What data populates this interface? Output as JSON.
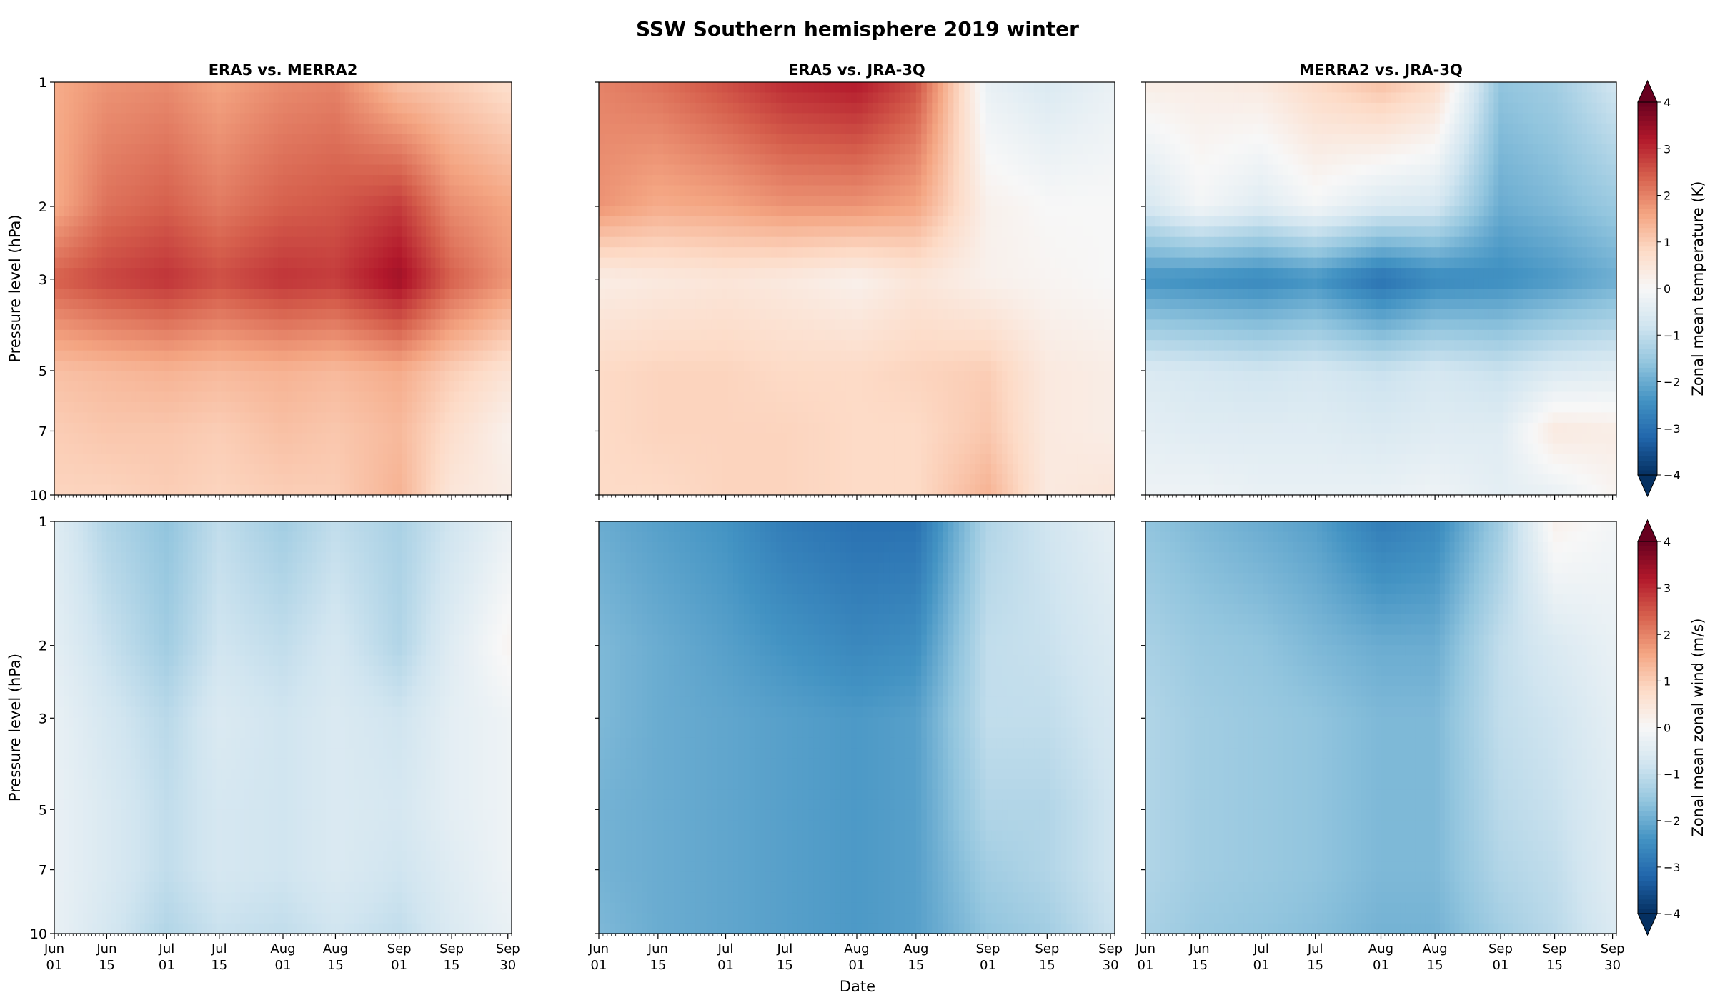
{
  "title": "SSW Southern hemisphere 2019 winter",
  "xlabel": "Date",
  "ylabel": "Pressure level (hPa)",
  "colors": {
    "cmap": "RdBu_r",
    "neg": "#053061",
    "pos": "#67001f"
  },
  "chart_data": [
    {
      "type": "heatmap",
      "title": "ERA5 vs. MERRA2",
      "variable": "temperature",
      "colorbar_label": "Zonal mean temperature (K)",
      "clim": [
        -4,
        4
      ],
      "colorbar_extend": "both",
      "x_ticks": [
        "Jun 01",
        "Jun 15",
        "Jul 01",
        "Jul 15",
        "Aug 01",
        "Aug 15",
        "Sep 01",
        "Sep 15",
        "Sep 30"
      ],
      "y_levels": [
        1,
        2,
        3,
        5,
        7,
        10
      ],
      "y_inverted": true,
      "dates": [
        "2019-06-01",
        "2019-06-15",
        "2019-07-01",
        "2019-07-15",
        "2019-08-01",
        "2019-08-15",
        "2019-09-01",
        "2019-09-15",
        "2019-09-30"
      ],
      "values_by_level": {
        "1": [
          1.5,
          1.8,
          1.9,
          1.6,
          1.9,
          2.0,
          1.2,
          1.0,
          0.7
        ],
        "2": [
          1.5,
          2.2,
          2.4,
          2.1,
          2.4,
          2.5,
          2.8,
          1.9,
          1.6
        ],
        "3": [
          2.4,
          2.7,
          2.9,
          2.6,
          2.9,
          2.8,
          3.4,
          2.4,
          1.8
        ],
        "5": [
          1.2,
          1.3,
          1.4,
          1.3,
          1.4,
          1.3,
          1.5,
          1.0,
          0.6
        ],
        "7": [
          1.0,
          1.1,
          1.1,
          1.0,
          1.2,
          1.1,
          1.3,
          0.7,
          0.2
        ],
        "10": [
          0.9,
          0.9,
          1.0,
          0.9,
          1.0,
          1.0,
          1.4,
          0.5,
          0.3
        ]
      }
    },
    {
      "type": "heatmap",
      "title": "ERA5 vs. JRA-3Q",
      "variable": "temperature",
      "colorbar_label": "Zonal mean temperature (K)",
      "clim": [
        -4,
        4
      ],
      "colorbar_extend": "both",
      "x_ticks": [
        "Jun 01",
        "Jun 15",
        "Jul 01",
        "Jul 15",
        "Aug 01",
        "Aug 15",
        "Sep 01",
        "Sep 15",
        "Sep 30"
      ],
      "y_levels": [
        1,
        2,
        3,
        5,
        7,
        10
      ],
      "y_inverted": true,
      "dates": [
        "2019-06-01",
        "2019-06-15",
        "2019-07-01",
        "2019-07-15",
        "2019-08-01",
        "2019-08-15",
        "2019-09-01",
        "2019-09-15",
        "2019-09-30"
      ],
      "values_by_level": {
        "1": [
          2.0,
          2.2,
          2.6,
          3.0,
          3.2,
          2.6,
          -0.3,
          -0.6,
          -0.3
        ],
        "2": [
          1.8,
          1.5,
          1.6,
          1.8,
          1.8,
          1.6,
          0.2,
          0.0,
          0.0
        ],
        "3": [
          0.3,
          0.4,
          0.5,
          0.4,
          0.2,
          0.5,
          0.2,
          0.1,
          0.0
        ],
        "5": [
          0.8,
          0.9,
          0.9,
          0.8,
          0.8,
          0.9,
          1.0,
          0.4,
          0.3
        ],
        "7": [
          0.8,
          0.9,
          0.9,
          0.9,
          0.8,
          0.8,
          1.1,
          0.4,
          0.3
        ],
        "10": [
          0.8,
          0.8,
          0.9,
          0.9,
          0.8,
          0.8,
          1.4,
          0.4,
          0.5
        ]
      }
    },
    {
      "type": "heatmap",
      "title": "MERRA2 vs. JRA-3Q",
      "variable": "temperature",
      "colorbar_label": "Zonal mean temperature (K)",
      "clim": [
        -4,
        4
      ],
      "colorbar_extend": "both",
      "x_ticks": [
        "Jun 01",
        "Jun 15",
        "Jul 01",
        "Jul 15",
        "Aug 01",
        "Aug 15",
        "Sep 01",
        "Sep 15",
        "Sep 30"
      ],
      "y_levels": [
        1,
        2,
        3,
        5,
        7,
        10
      ],
      "y_inverted": true,
      "dates": [
        "2019-06-01",
        "2019-06-15",
        "2019-07-01",
        "2019-07-15",
        "2019-08-01",
        "2019-08-15",
        "2019-09-01",
        "2019-09-15",
        "2019-09-30"
      ],
      "values_by_level": {
        "1": [
          0.3,
          0.3,
          0.4,
          0.8,
          1.2,
          0.8,
          -1.6,
          -1.4,
          -0.8
        ],
        "2": [
          -0.7,
          -0.1,
          -0.5,
          -0.1,
          -0.6,
          -0.7,
          -2.0,
          -1.8,
          -1.5
        ],
        "3": [
          -2.4,
          -2.5,
          -2.6,
          -2.4,
          -3.0,
          -2.6,
          -2.5,
          -2.3,
          -2.0
        ],
        "5": [
          -0.6,
          -0.7,
          -0.8,
          -0.7,
          -0.9,
          -0.7,
          -0.9,
          -0.6,
          -0.5
        ],
        "7": [
          -0.4,
          -0.5,
          -0.5,
          -0.5,
          -0.6,
          -0.5,
          -0.5,
          0.4,
          0.3
        ],
        "10": [
          -0.2,
          -0.2,
          -0.3,
          -0.3,
          -0.3,
          -0.2,
          -0.4,
          -0.3,
          0.1
        ]
      }
    },
    {
      "type": "heatmap",
      "title": "",
      "variable": "wind",
      "colorbar_label": "Zonal mean zonal wind (m/s)",
      "clim": [
        -4,
        4
      ],
      "colorbar_extend": "both",
      "x_ticks": [
        "Jun 01",
        "Jun 15",
        "Jul 01",
        "Jul 15",
        "Aug 01",
        "Aug 15",
        "Sep 01",
        "Sep 15",
        "Sep 30"
      ],
      "y_levels": [
        1,
        2,
        3,
        5,
        7,
        10
      ],
      "y_inverted": true,
      "dates": [
        "2019-06-01",
        "2019-06-15",
        "2019-07-01",
        "2019-07-15",
        "2019-08-01",
        "2019-08-15",
        "2019-09-01",
        "2019-09-15",
        "2019-09-30"
      ],
      "values_by_level": {
        "1": [
          -0.5,
          -1.2,
          -1.6,
          -1.0,
          -1.4,
          -1.0,
          -1.3,
          -0.8,
          -0.3
        ],
        "2": [
          -0.4,
          -0.9,
          -1.4,
          -0.8,
          -1.0,
          -0.7,
          -1.2,
          -0.5,
          0.1
        ],
        "3": [
          -0.3,
          -0.7,
          -1.1,
          -0.6,
          -0.8,
          -0.6,
          -0.8,
          -0.4,
          -0.2
        ],
        "5": [
          -0.3,
          -0.6,
          -1.0,
          -0.7,
          -0.8,
          -0.6,
          -0.7,
          -0.4,
          -0.2
        ],
        "7": [
          -0.3,
          -0.6,
          -1.0,
          -0.7,
          -0.8,
          -0.6,
          -0.8,
          -0.5,
          -0.2
        ],
        "10": [
          -0.3,
          -0.7,
          -1.2,
          -0.9,
          -1.0,
          -0.8,
          -1.0,
          -0.6,
          -0.3
        ]
      }
    },
    {
      "type": "heatmap",
      "title": "",
      "variable": "wind",
      "colorbar_label": "Zonal mean zonal wind (m/s)",
      "clim": [
        -4,
        4
      ],
      "colorbar_extend": "both",
      "x_ticks": [
        "Jun 01",
        "Jun 15",
        "Jul 01",
        "Jul 15",
        "Aug 01",
        "Aug 15",
        "Sep 01",
        "Sep 15",
        "Sep 30"
      ],
      "y_levels": [
        1,
        2,
        3,
        5,
        7,
        10
      ],
      "y_inverted": true,
      "dates": [
        "2019-06-01",
        "2019-06-15",
        "2019-07-01",
        "2019-07-15",
        "2019-08-01",
        "2019-08-15",
        "2019-09-01",
        "2019-09-15",
        "2019-09-30"
      ],
      "values_by_level": {
        "1": [
          -2.0,
          -2.2,
          -2.4,
          -2.8,
          -3.0,
          -3.0,
          -1.2,
          -0.8,
          -0.4
        ],
        "2": [
          -1.8,
          -2.0,
          -2.2,
          -2.4,
          -2.6,
          -2.5,
          -1.0,
          -0.9,
          -0.6
        ],
        "3": [
          -1.8,
          -2.0,
          -2.1,
          -2.2,
          -2.3,
          -2.2,
          -1.0,
          -1.0,
          -0.7
        ],
        "5": [
          -1.9,
          -2.0,
          -2.1,
          -2.2,
          -2.3,
          -2.2,
          -1.2,
          -1.2,
          -0.8
        ],
        "7": [
          -1.9,
          -2.0,
          -2.1,
          -2.2,
          -2.3,
          -2.2,
          -1.4,
          -1.2,
          -0.8
        ],
        "10": [
          -1.8,
          -2.0,
          -2.1,
          -2.2,
          -2.3,
          -2.2,
          -1.6,
          -1.4,
          -0.9
        ]
      }
    },
    {
      "type": "heatmap",
      "title": "",
      "variable": "wind",
      "colorbar_label": "Zonal mean zonal wind (m/s)",
      "clim": [
        -4,
        4
      ],
      "colorbar_extend": "both",
      "x_ticks": [
        "Jun 01",
        "Jun 15",
        "Jul 01",
        "Jul 15",
        "Aug 01",
        "Aug 15",
        "Sep 01",
        "Sep 15",
        "Sep 30"
      ],
      "y_levels": [
        1,
        2,
        3,
        5,
        7,
        10
      ],
      "y_inverted": true,
      "dates": [
        "2019-06-01",
        "2019-06-15",
        "2019-07-01",
        "2019-07-15",
        "2019-08-01",
        "2019-08-15",
        "2019-09-01",
        "2019-09-15",
        "2019-09-30"
      ],
      "values_by_level": {
        "1": [
          -1.6,
          -1.8,
          -2.0,
          -2.2,
          -2.8,
          -2.6,
          -1.4,
          0.2,
          -0.1
        ],
        "2": [
          -1.3,
          -1.5,
          -1.6,
          -1.8,
          -2.0,
          -2.0,
          -1.0,
          -0.6,
          -0.3
        ],
        "3": [
          -1.2,
          -1.4,
          -1.5,
          -1.6,
          -1.8,
          -1.8,
          -1.0,
          -0.8,
          -0.4
        ],
        "5": [
          -1.2,
          -1.4,
          -1.5,
          -1.6,
          -1.8,
          -1.8,
          -1.1,
          -0.9,
          -0.5
        ],
        "7": [
          -1.2,
          -1.4,
          -1.5,
          -1.6,
          -1.8,
          -1.8,
          -1.2,
          -1.0,
          -0.5
        ],
        "10": [
          -1.3,
          -1.5,
          -1.6,
          -1.7,
          -1.9,
          -1.9,
          -1.4,
          -1.1,
          -0.6
        ]
      }
    }
  ],
  "colorbars": [
    {
      "label": "Zonal mean temperature (K)",
      "ticks": [
        "4",
        "3",
        "2",
        "1",
        "0",
        "−1",
        "−2",
        "−3",
        "−4"
      ]
    },
    {
      "label": "Zonal mean zonal wind (m/s)",
      "ticks": [
        "4",
        "3",
        "2",
        "1",
        "0",
        "−1",
        "−2",
        "−3",
        "−4"
      ]
    }
  ]
}
